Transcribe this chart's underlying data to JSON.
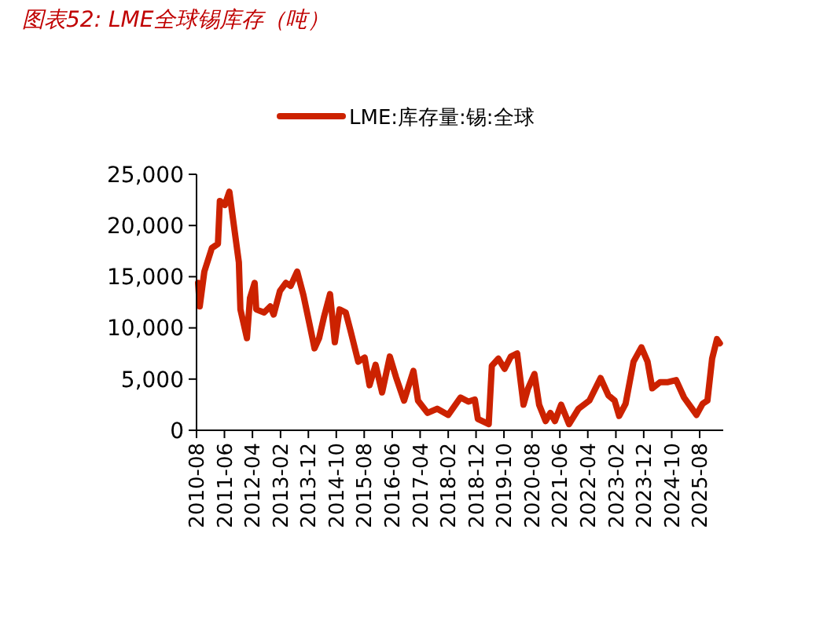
{
  "chart_data": {
    "type": "line",
    "title": "图表52: LME全球锡库存（吨）",
    "legend": "top",
    "grid": false,
    "line_style": "solid",
    "marker": "none",
    "x": [
      "2010-08-18",
      "2010-09-05",
      "2010-10-25",
      "2011-01-15",
      "2011-03-22",
      "2011-04-12",
      "2011-06-05",
      "2011-07-25",
      "2011-08-28",
      "2011-11-05",
      "2011-11-22",
      "2012-02-01",
      "2012-03-05",
      "2012-04-25",
      "2012-05-12",
      "2012-08-06",
      "2012-10-12",
      "2012-11-18",
      "2013-01-25",
      "2013-04-01",
      "2013-05-22",
      "2013-08-01",
      "2013-10-08",
      "2013-12-15",
      "2014-02-06",
      "2014-03-28",
      "2014-05-18",
      "2014-07-25",
      "2014-09-15",
      "2014-11-06",
      "2015-01-12",
      "2015-03-03",
      "2015-05-28",
      "2015-08-06",
      "2015-09-28",
      "2015-12-03",
      "2016-02-12",
      "2016-05-06",
      "2016-07-12",
      "2016-10-08",
      "2017-01-18",
      "2017-03-09",
      "2017-06-21",
      "2017-10-03",
      "2018-02-01",
      "2018-06-15",
      "2018-09-09",
      "2018-11-18",
      "2018-12-21",
      "2019-04-18",
      "2019-05-22",
      "2019-08-01",
      "2019-10-08",
      "2019-12-15",
      "2020-02-22",
      "2020-05-01",
      "2020-06-20",
      "2020-08-28",
      "2020-10-18",
      "2020-12-28",
      "2021-02-18",
      "2021-04-08",
      "2021-06-15",
      "2021-09-09",
      "2021-12-21",
      "2022-04-18",
      "2022-08-18",
      "2022-11-12",
      "2023-01-18",
      "2023-03-09",
      "2023-05-18",
      "2023-08-12",
      "2023-11-06",
      "2024-01-12",
      "2024-03-03",
      "2024-05-28",
      "2024-08-22",
      "2024-11-18",
      "2025-02-12",
      "2025-06-28",
      "2025-09-03",
      "2025-10-25",
      "2025-12-15",
      "2026-02-06",
      "2026-03-09"
    ],
    "series": [
      {
        "name": "LME:库存量:锡:全球",
        "color": "#cc2200",
        "values": [
          14400,
          12100,
          15500,
          17800,
          18200,
          22400,
          22000,
          23300,
          21000,
          16400,
          11800,
          9000,
          12900,
          14400,
          11800,
          11500,
          12100,
          11300,
          13600,
          14400,
          14100,
          15500,
          13200,
          10300,
          8000,
          9000,
          11000,
          13300,
          8600,
          11800,
          11500,
          9800,
          6700,
          7100,
          4400,
          6400,
          3700,
          7200,
          5200,
          2900,
          5800,
          2900,
          1700,
          2100,
          1500,
          3200,
          2800,
          3000,
          1100,
          600,
          6300,
          7000,
          6000,
          7200,
          7500,
          2500,
          4100,
          5500,
          2500,
          900,
          1700,
          900,
          2500,
          600,
          2100,
          2900,
          5100,
          3400,
          2900,
          1400,
          2600,
          6700,
          8100,
          6700,
          4100,
          4700,
          4700,
          4900,
          3200,
          1500,
          2600,
          2900,
          7000,
          8900,
          8500
        ]
      }
    ],
    "xlim": [
      "2010-08-01",
      "2026-04-15"
    ],
    "xticks": [
      "2010-08",
      "2011-06",
      "2012-04",
      "2013-02",
      "2013-12",
      "2014-10",
      "2015-08",
      "2016-06",
      "2017-04",
      "2018-02",
      "2018-12",
      "2019-10",
      "2020-08",
      "2021-06",
      "2022-04",
      "2023-02",
      "2023-12",
      "2024-10",
      "2025-08"
    ],
    "ylim": [
      0,
      25000
    ],
    "yticks": [
      {
        "value": 0,
        "label": "0"
      },
      {
        "value": 5000,
        "label": "5,000"
      },
      {
        "value": 10000,
        "label": "10,000"
      },
      {
        "value": 15000,
        "label": "15,000"
      },
      {
        "value": 20000,
        "label": "20,000"
      },
      {
        "value": 25000,
        "label": "25,000"
      }
    ]
  }
}
